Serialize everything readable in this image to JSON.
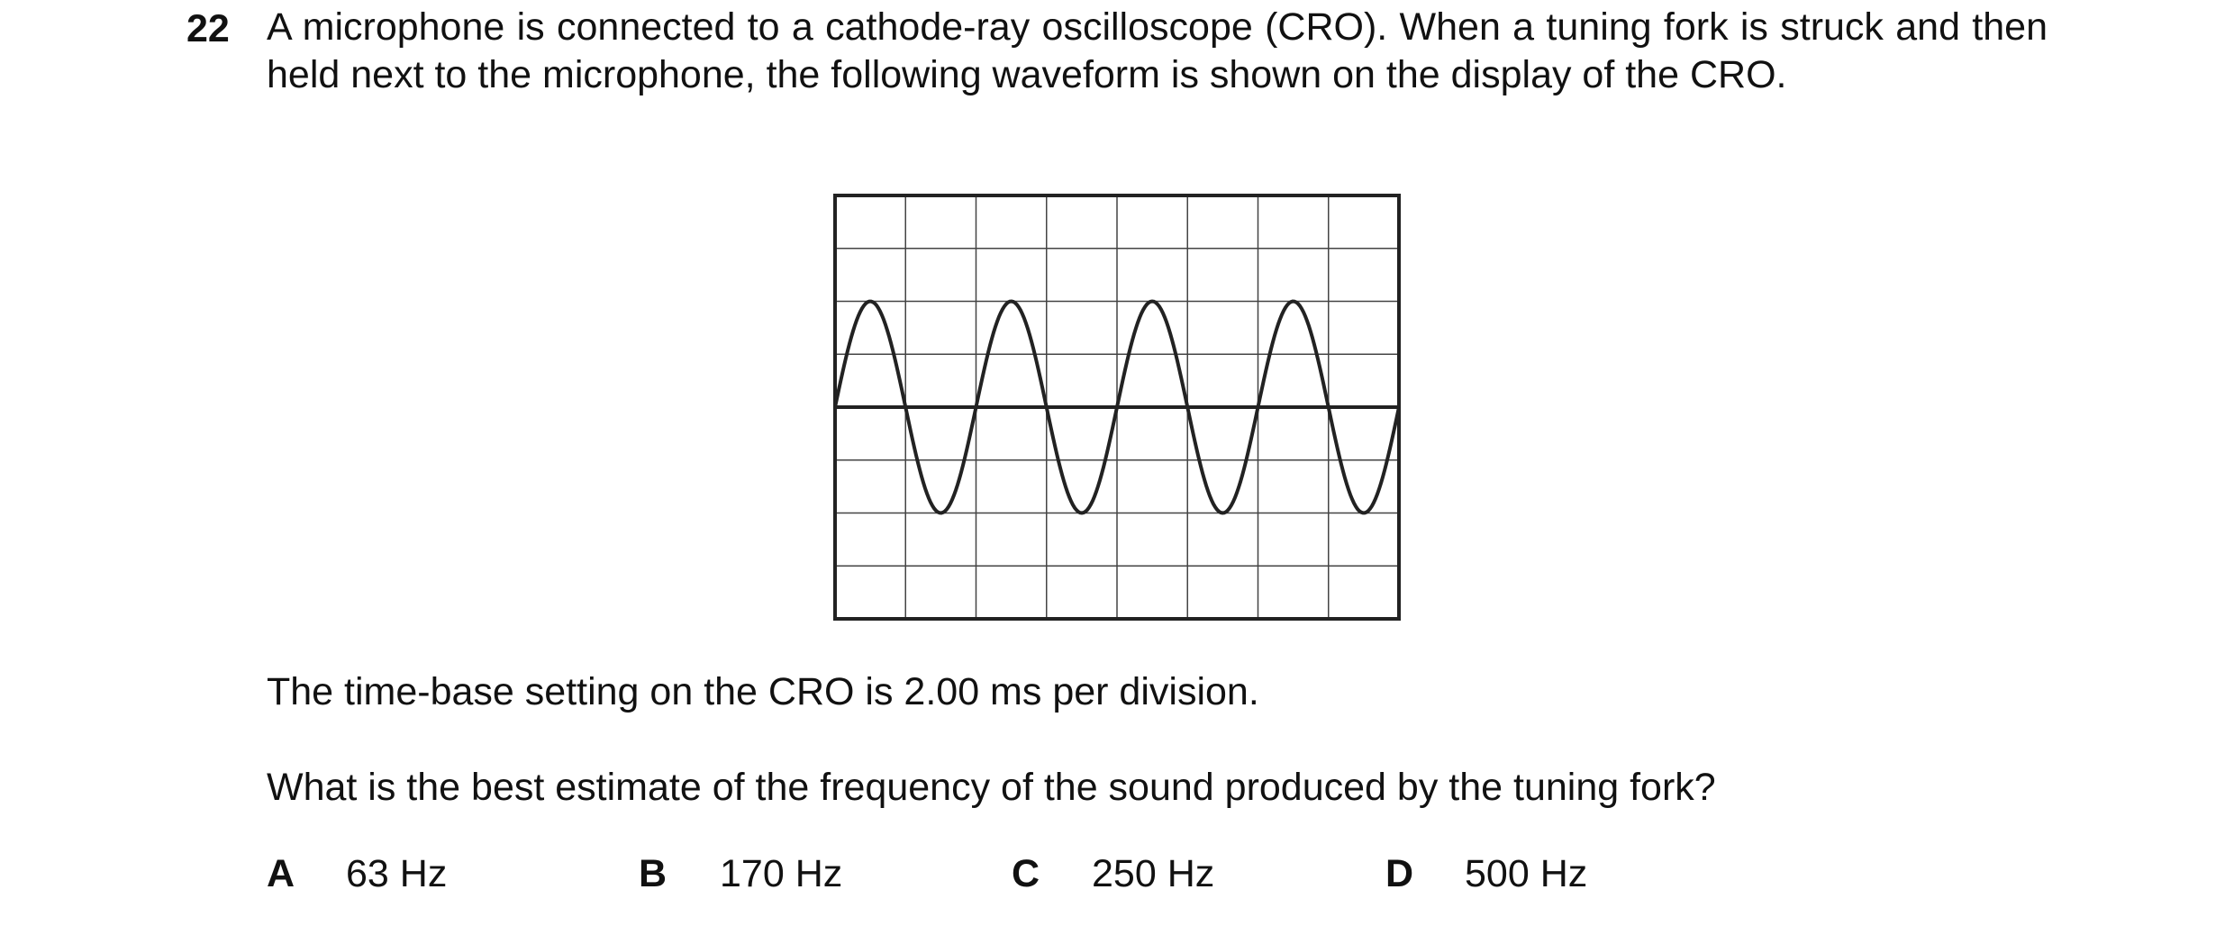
{
  "question": {
    "number": "22",
    "stem": "A microphone is connected to a cathode-ray oscilloscope (CRO). When a tuning fork is struck and then held next to the microphone, the following waveform is shown on the display of the CRO.",
    "time_base": "The time-base setting on the CRO is 2.00 ms per division.",
    "prompt": "What is the best estimate of the frequency of the sound produced by the tuning fork?",
    "options": [
      {
        "letter": "A",
        "text": "63 Hz"
      },
      {
        "letter": "B",
        "text": "170 Hz"
      },
      {
        "letter": "C",
        "text": "250 Hz"
      },
      {
        "letter": "D",
        "text": "500 Hz"
      }
    ]
  }
}
